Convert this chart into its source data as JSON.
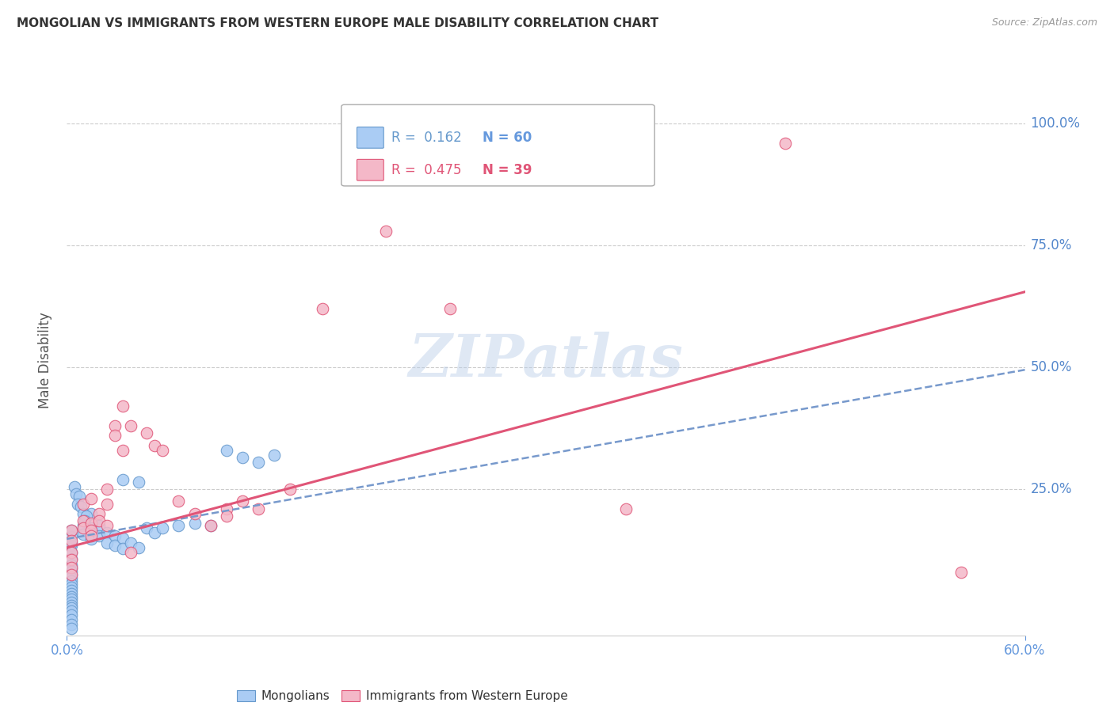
{
  "title": "MONGOLIAN VS IMMIGRANTS FROM WESTERN EUROPE MALE DISABILITY CORRELATION CHART",
  "source": "Source: ZipAtlas.com",
  "ylabel": "Male Disability",
  "watermark": "ZIPatlas",
  "legend1": "Mongolians",
  "legend2": "Immigrants from Western Europe",
  "xlim": [
    0.0,
    0.6
  ],
  "ylim": [
    -0.05,
    1.08
  ],
  "xtick_vals": [
    0.0,
    0.6
  ],
  "xtick_labels": [
    "0.0%",
    "60.0%"
  ],
  "ytick_positions": [
    1.0,
    0.75,
    0.5,
    0.25
  ],
  "ytick_labels": [
    "100.0%",
    "75.0%",
    "50.0%",
    "25.0%"
  ],
  "grid_color": "#cccccc",
  "blue_color": "#aaccf4",
  "pink_color": "#f4b8c8",
  "blue_edge_color": "#6699cc",
  "pink_edge_color": "#e05577",
  "blue_line_color": "#7799cc",
  "pink_line_color": "#e05577",
  "tick_color": "#6699dd",
  "ytick_right_color": "#5588cc",
  "background_color": "#ffffff",
  "title_color": "#333333",
  "axis_label_color": "#555555",
  "blue_scatter": [
    [
      0.003,
      0.152
    ],
    [
      0.003,
      0.135
    ],
    [
      0.003,
      0.165
    ],
    [
      0.003,
      0.14
    ],
    [
      0.003,
      0.12
    ],
    [
      0.003,
      0.108
    ],
    [
      0.003,
      0.095
    ],
    [
      0.003,
      0.088
    ],
    [
      0.003,
      0.082
    ],
    [
      0.003,
      0.075
    ],
    [
      0.003,
      0.068
    ],
    [
      0.003,
      0.062
    ],
    [
      0.003,
      0.055
    ],
    [
      0.003,
      0.048
    ],
    [
      0.003,
      0.042
    ],
    [
      0.003,
      0.036
    ],
    [
      0.003,
      0.03
    ],
    [
      0.003,
      0.024
    ],
    [
      0.003,
      0.018
    ],
    [
      0.003,
      0.012
    ],
    [
      0.003,
      0.006
    ],
    [
      0.003,
      0.0
    ],
    [
      0.003,
      -0.008
    ],
    [
      0.003,
      -0.018
    ],
    [
      0.003,
      -0.028
    ],
    [
      0.003,
      -0.035
    ],
    [
      0.01,
      0.175
    ],
    [
      0.01,
      0.158
    ],
    [
      0.015,
      0.2
    ],
    [
      0.015,
      0.17
    ],
    [
      0.015,
      0.148
    ],
    [
      0.02,
      0.175
    ],
    [
      0.02,
      0.155
    ],
    [
      0.025,
      0.16
    ],
    [
      0.025,
      0.14
    ],
    [
      0.03,
      0.155
    ],
    [
      0.03,
      0.135
    ],
    [
      0.035,
      0.15
    ],
    [
      0.035,
      0.128
    ],
    [
      0.04,
      0.14
    ],
    [
      0.045,
      0.13
    ],
    [
      0.05,
      0.17
    ],
    [
      0.055,
      0.16
    ],
    [
      0.06,
      0.17
    ],
    [
      0.07,
      0.175
    ],
    [
      0.08,
      0.18
    ],
    [
      0.09,
      0.175
    ],
    [
      0.1,
      0.33
    ],
    [
      0.11,
      0.315
    ],
    [
      0.12,
      0.305
    ],
    [
      0.13,
      0.32
    ],
    [
      0.035,
      0.27
    ],
    [
      0.045,
      0.265
    ],
    [
      0.005,
      0.255
    ],
    [
      0.006,
      0.24
    ],
    [
      0.008,
      0.235
    ],
    [
      0.007,
      0.22
    ],
    [
      0.009,
      0.215
    ],
    [
      0.01,
      0.2
    ],
    [
      0.012,
      0.195
    ],
    [
      0.011,
      0.185
    ]
  ],
  "pink_scatter": [
    [
      0.003,
      0.165
    ],
    [
      0.003,
      0.145
    ],
    [
      0.003,
      0.12
    ],
    [
      0.003,
      0.105
    ],
    [
      0.003,
      0.09
    ],
    [
      0.003,
      0.075
    ],
    [
      0.01,
      0.22
    ],
    [
      0.01,
      0.185
    ],
    [
      0.01,
      0.17
    ],
    [
      0.015,
      0.23
    ],
    [
      0.015,
      0.18
    ],
    [
      0.015,
      0.165
    ],
    [
      0.02,
      0.2
    ],
    [
      0.02,
      0.185
    ],
    [
      0.025,
      0.25
    ],
    [
      0.025,
      0.22
    ],
    [
      0.03,
      0.38
    ],
    [
      0.03,
      0.36
    ],
    [
      0.035,
      0.42
    ],
    [
      0.035,
      0.33
    ],
    [
      0.04,
      0.38
    ],
    [
      0.05,
      0.365
    ],
    [
      0.055,
      0.34
    ],
    [
      0.06,
      0.33
    ],
    [
      0.07,
      0.225
    ],
    [
      0.08,
      0.2
    ],
    [
      0.09,
      0.175
    ],
    [
      0.1,
      0.21
    ],
    [
      0.1,
      0.195
    ],
    [
      0.11,
      0.225
    ],
    [
      0.12,
      0.21
    ],
    [
      0.14,
      0.25
    ],
    [
      0.16,
      0.62
    ],
    [
      0.2,
      0.78
    ],
    [
      0.24,
      0.62
    ],
    [
      0.35,
      0.21
    ],
    [
      0.45,
      0.96
    ],
    [
      0.56,
      0.08
    ],
    [
      0.04,
      0.12
    ],
    [
      0.025,
      0.175
    ],
    [
      0.015,
      0.155
    ]
  ],
  "blue_trend_x": [
    0.0,
    0.6
  ],
  "blue_trend_y": [
    0.148,
    0.495
  ],
  "pink_trend_x": [
    0.0,
    0.6
  ],
  "pink_trend_y": [
    0.13,
    0.655
  ]
}
